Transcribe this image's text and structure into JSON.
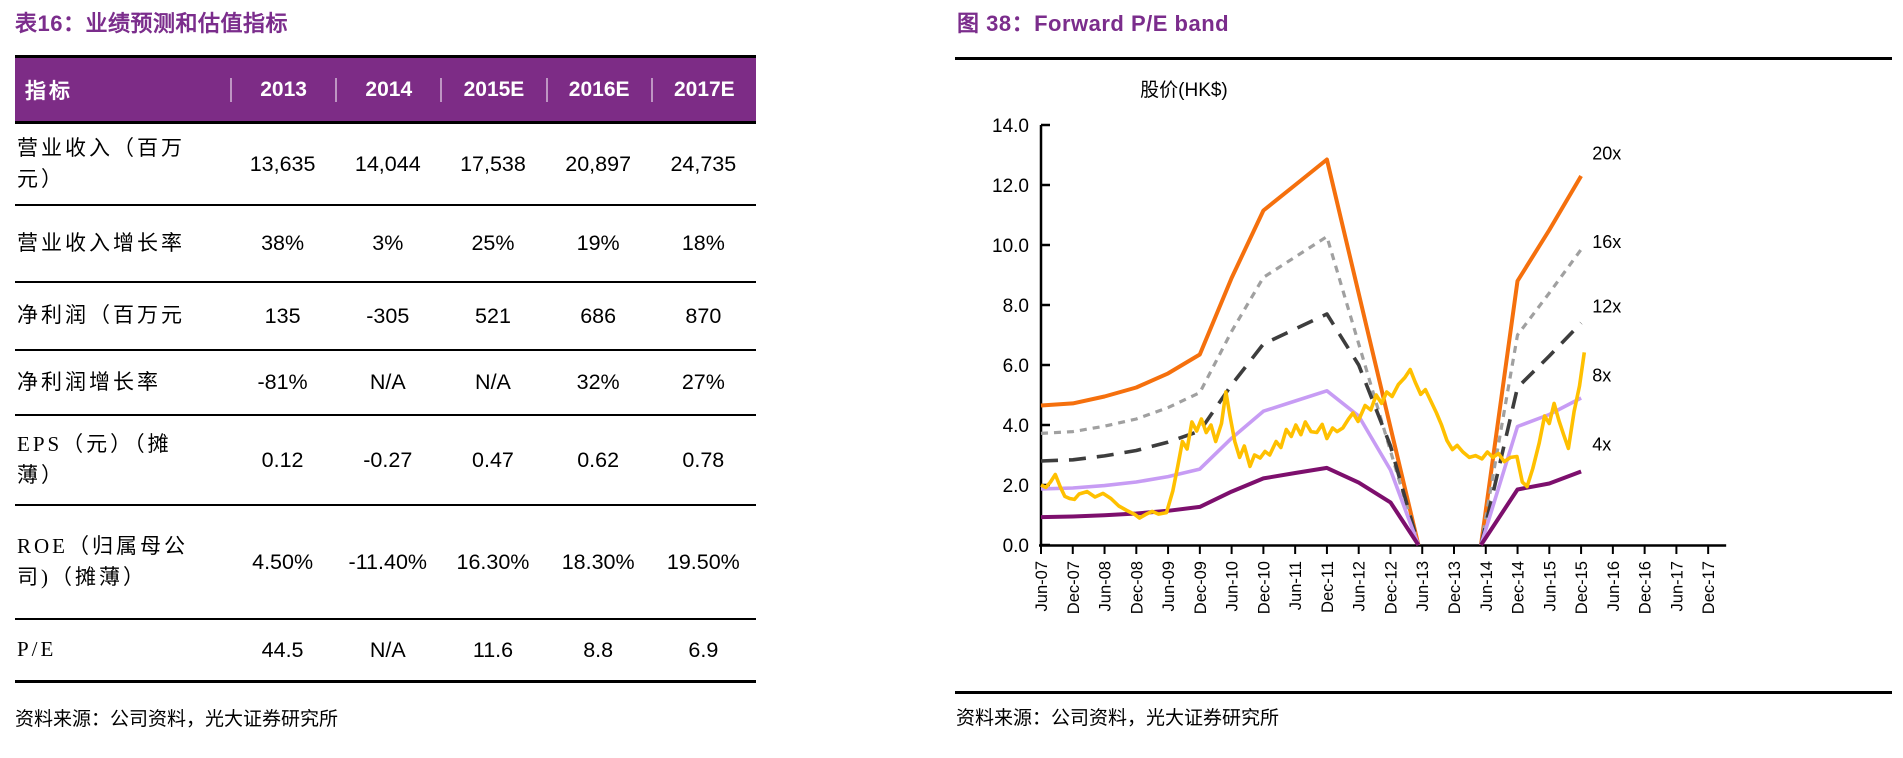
{
  "left_panel": {
    "title": "表16：业绩预测和估值指标",
    "table": {
      "header": [
        "指标",
        "2013",
        "2014",
        "2015E",
        "2016E",
        "2017E"
      ],
      "rows": [
        {
          "label": "营业收入（百万\n元）",
          "values": [
            "13,635",
            "14,044",
            "17,538",
            "20,897",
            "24,735"
          ]
        },
        {
          "label": "营业收入增长率",
          "values": [
            "38%",
            "3%",
            "25%",
            "19%",
            "18%"
          ]
        },
        {
          "label": "净利润（百万元",
          "values": [
            "135",
            "-305",
            "521",
            "686",
            "870"
          ]
        },
        {
          "label": "净利润增长率",
          "values": [
            "-81%",
            "N/A",
            "N/A",
            "32%",
            "27%"
          ]
        },
        {
          "label": "EPS（元）（摊\n薄）",
          "values": [
            "0.12",
            "-0.27",
            "0.47",
            "0.62",
            "0.78"
          ]
        },
        {
          "label": "ROE（归属母公\n司)（摊薄）",
          "values": [
            "4.50%",
            "-11.40%",
            "16.30%",
            "18.30%",
            "19.50%"
          ]
        },
        {
          "label": "P/E",
          "values": [
            "44.5",
            "N/A",
            "11.6",
            "8.8",
            "6.9"
          ]
        }
      ]
    },
    "source": "资料来源：公司资料，光大证券研究所"
  },
  "right_panel": {
    "title": "图 38：Forward P/E band",
    "source": "资料来源：公司资料，光大证券研究所",
    "chart_data": {
      "type": "line",
      "title": "Forward P/E band",
      "ylabel": "股价(HK$)",
      "ylim": [
        0,
        14
      ],
      "ytick_labels": [
        "0.0",
        "2.0",
        "4.0",
        "6.0",
        "8.0",
        "10.0",
        "12.0",
        "14.0"
      ],
      "x_tick_labels": [
        "Jun-07",
        "Dec-07",
        "Jun-08",
        "Dec-08",
        "Jun-09",
        "Dec-09",
        "Jun-10",
        "Dec-10",
        "Jun-11",
        "Dec-11",
        "Jun-12",
        "Dec-12",
        "Jun-13",
        "Dec-13",
        "Jun-14",
        "Dec-14",
        "Jun-15",
        "Dec-15",
        "Jun-16",
        "Dec-16",
        "Jun-17",
        "Dec-17"
      ],
      "grid": false,
      "legend": "inline-right-labels",
      "series": [
        {
          "name": "20x",
          "color": "#F5700D",
          "width": 4,
          "dash": "",
          "segments": [
            [
              [
                0,
                4.65
              ],
              [
                1,
                4.72
              ],
              [
                2,
                4.95
              ],
              [
                3,
                5.25
              ],
              [
                4,
                5.72
              ],
              [
                5,
                6.35
              ],
              [
                6,
                8.9
              ],
              [
                7,
                11.15
              ],
              [
                8,
                12.0
              ],
              [
                9,
                12.85
              ],
              [
                11.88,
                0
              ]
            ],
            [
              [
                13.85,
                0
              ],
              [
                15,
                8.8
              ],
              [
                16,
                10.5
              ],
              [
                17,
                12.3
              ]
            ]
          ]
        },
        {
          "name": "16x",
          "color": "#A0A0A0",
          "width": 3.2,
          "dash": "7 6",
          "segments": [
            [
              [
                0,
                3.72
              ],
              [
                1,
                3.78
              ],
              [
                2,
                3.96
              ],
              [
                3,
                4.2
              ],
              [
                4,
                4.58
              ],
              [
                5,
                5.08
              ],
              [
                6,
                7.12
              ],
              [
                7,
                8.92
              ],
              [
                8,
                9.6
              ],
              [
                9,
                10.28
              ],
              [
                11.88,
                0
              ]
            ],
            [
              [
                13.85,
                0
              ],
              [
                15,
                7.0
              ],
              [
                16,
                8.4
              ],
              [
                17,
                9.85
              ]
            ]
          ]
        },
        {
          "name": "12x",
          "color": "#3D3D3D",
          "width": 3.6,
          "dash": "17 11",
          "segments": [
            [
              [
                0,
                2.8
              ],
              [
                1,
                2.84
              ],
              [
                2,
                2.97
              ],
              [
                3,
                3.15
              ],
              [
                4,
                3.43
              ],
              [
                5,
                3.8
              ],
              [
                6,
                5.34
              ],
              [
                7,
                6.7
              ],
              [
                8,
                7.2
              ],
              [
                9,
                7.7
              ],
              [
                10,
                6.0
              ],
              [
                11,
                3.3
              ],
              [
                11.88,
                0
              ]
            ],
            [
              [
                13.85,
                0
              ],
              [
                15,
                5.25
              ],
              [
                16,
                6.3
              ],
              [
                17,
                7.4
              ]
            ]
          ]
        },
        {
          "name": "8x",
          "color": "#C79CF4",
          "width": 3.6,
          "dash": "",
          "segments": [
            [
              [
                0,
                1.87
              ],
              [
                1,
                1.9
              ],
              [
                2,
                1.98
              ],
              [
                3,
                2.1
              ],
              [
                4,
                2.28
              ],
              [
                5,
                2.53
              ],
              [
                6,
                3.56
              ],
              [
                7,
                4.46
              ],
              [
                8,
                4.8
              ],
              [
                9,
                5.14
              ],
              [
                10,
                4.3
              ],
              [
                11,
                2.5
              ],
              [
                11.88,
                0
              ]
            ],
            [
              [
                13.85,
                0
              ],
              [
                15,
                3.95
              ],
              [
                16,
                4.35
              ],
              [
                17,
                4.9
              ]
            ]
          ]
        },
        {
          "name": "4x",
          "color": "#7D0F6D",
          "width": 4,
          "dash": "",
          "segments": [
            [
              [
                0,
                0.93
              ],
              [
                1,
                0.95
              ],
              [
                2,
                0.99
              ],
              [
                3,
                1.05
              ],
              [
                4,
                1.14
              ],
              [
                5,
                1.27
              ],
              [
                6,
                1.78
              ],
              [
                7,
                2.22
              ],
              [
                8,
                2.4
              ],
              [
                9,
                2.57
              ],
              [
                10,
                2.08
              ],
              [
                11,
                1.42
              ],
              [
                11.88,
                0
              ]
            ],
            [
              [
                13.85,
                0
              ],
              [
                15,
                1.85
              ],
              [
                16,
                2.05
              ],
              [
                17,
                2.45
              ]
            ]
          ]
        },
        {
          "name": "股价",
          "color": "#FFC000",
          "width": 3.6,
          "dash": "",
          "segments": [
            [
              [
                0,
                2.0
              ],
              [
                0.15,
                1.92
              ],
              [
                0.3,
                2.1
              ],
              [
                0.45,
                2.35
              ],
              [
                0.6,
                1.95
              ],
              [
                0.75,
                1.62
              ],
              [
                0.9,
                1.55
              ],
              [
                1.05,
                1.52
              ],
              [
                1.2,
                1.7
              ],
              [
                1.45,
                1.78
              ],
              [
                1.7,
                1.6
              ],
              [
                1.95,
                1.72
              ],
              [
                2.2,
                1.55
              ],
              [
                2.45,
                1.3
              ],
              [
                2.7,
                1.15
              ],
              [
                2.95,
                1.02
              ],
              [
                3.1,
                0.9
              ],
              [
                3.3,
                1.02
              ],
              [
                3.5,
                1.12
              ],
              [
                3.7,
                1.03
              ],
              [
                3.95,
                1.08
              ],
              [
                4.15,
                1.8
              ],
              [
                4.3,
                2.6
              ],
              [
                4.45,
                3.45
              ],
              [
                4.6,
                3.2
              ],
              [
                4.75,
                4.1
              ],
              [
                4.9,
                3.8
              ],
              [
                5.05,
                4.2
              ],
              [
                5.2,
                3.75
              ],
              [
                5.35,
                4.0
              ],
              [
                5.5,
                3.45
              ],
              [
                5.68,
                4.05
              ],
              [
                5.82,
                5.1
              ],
              [
                5.95,
                4.3
              ],
              [
                6.1,
                3.45
              ],
              [
                6.25,
                2.92
              ],
              [
                6.4,
                3.3
              ],
              [
                6.58,
                2.62
              ],
              [
                6.72,
                3.0
              ],
              [
                6.9,
                2.9
              ],
              [
                7.05,
                3.12
              ],
              [
                7.2,
                3.0
              ],
              [
                7.4,
                3.45
              ],
              [
                7.55,
                3.25
              ],
              [
                7.72,
                3.85
              ],
              [
                7.88,
                3.62
              ],
              [
                8.02,
                4.0
              ],
              [
                8.18,
                3.68
              ],
              [
                8.32,
                4.1
              ],
              [
                8.5,
                3.78
              ],
              [
                8.68,
                3.75
              ],
              [
                8.85,
                4.02
              ],
              [
                9.0,
                3.55
              ],
              [
                9.18,
                3.9
              ],
              [
                9.32,
                3.78
              ],
              [
                9.5,
                3.9
              ],
              [
                9.68,
                4.2
              ],
              [
                9.82,
                4.4
              ],
              [
                9.98,
                4.12
              ],
              [
                10.2,
                4.65
              ],
              [
                10.38,
                4.5
              ],
              [
                10.55,
                5.0
              ],
              [
                10.72,
                4.72
              ],
              [
                10.88,
                5.1
              ],
              [
                11.05,
                4.95
              ],
              [
                11.25,
                5.35
              ],
              [
                11.45,
                5.58
              ],
              [
                11.62,
                5.85
              ],
              [
                11.78,
                5.42
              ],
              [
                11.95,
                5.02
              ],
              [
                12.1,
                5.18
              ],
              [
                12.28,
                4.78
              ],
              [
                12.45,
                4.4
              ],
              [
                12.6,
                4.02
              ],
              [
                12.78,
                3.48
              ],
              [
                12.95,
                3.18
              ],
              [
                13.1,
                3.32
              ],
              [
                13.28,
                3.1
              ],
              [
                13.48,
                2.92
              ],
              [
                13.68,
                2.98
              ],
              [
                13.88,
                2.87
              ],
              [
                14.05,
                3.1
              ],
              [
                14.22,
                2.92
              ],
              [
                14.4,
                3.05
              ],
              [
                14.58,
                2.78
              ],
              [
                14.78,
                2.92
              ],
              [
                14.98,
                2.95
              ],
              [
                15.15,
                2.1
              ],
              [
                15.3,
                1.95
              ],
              [
                15.48,
                2.55
              ],
              [
                15.68,
                3.4
              ],
              [
                15.85,
                4.3
              ],
              [
                16.0,
                4.05
              ],
              [
                16.15,
                4.72
              ],
              [
                16.3,
                4.15
              ],
              [
                16.45,
                3.68
              ],
              [
                16.6,
                3.22
              ],
              [
                16.78,
                4.45
              ],
              [
                16.95,
                5.3
              ],
              [
                17.1,
                6.42
              ]
            ]
          ]
        }
      ],
      "band_labels": [
        {
          "text": "20x",
          "t": 17.35,
          "v": 12.85
        },
        {
          "text": "16x",
          "t": 17.35,
          "v": 9.9
        },
        {
          "text": "12x",
          "t": 17.35,
          "v": 7.75
        },
        {
          "text": "8x",
          "t": 17.35,
          "v": 5.45
        },
        {
          "text": "4x",
          "t": 17.35,
          "v": 3.15
        }
      ]
    }
  },
  "colors": {
    "title_purple": "#7B2D8C",
    "header_bg": "#7D2C86",
    "band_20x": "#F5700D",
    "band_16x": "#A0A0A0",
    "band_12x": "#3D3D3D",
    "band_8x": "#C79CF4",
    "band_4x": "#7D0F6D",
    "price": "#FFC000"
  }
}
